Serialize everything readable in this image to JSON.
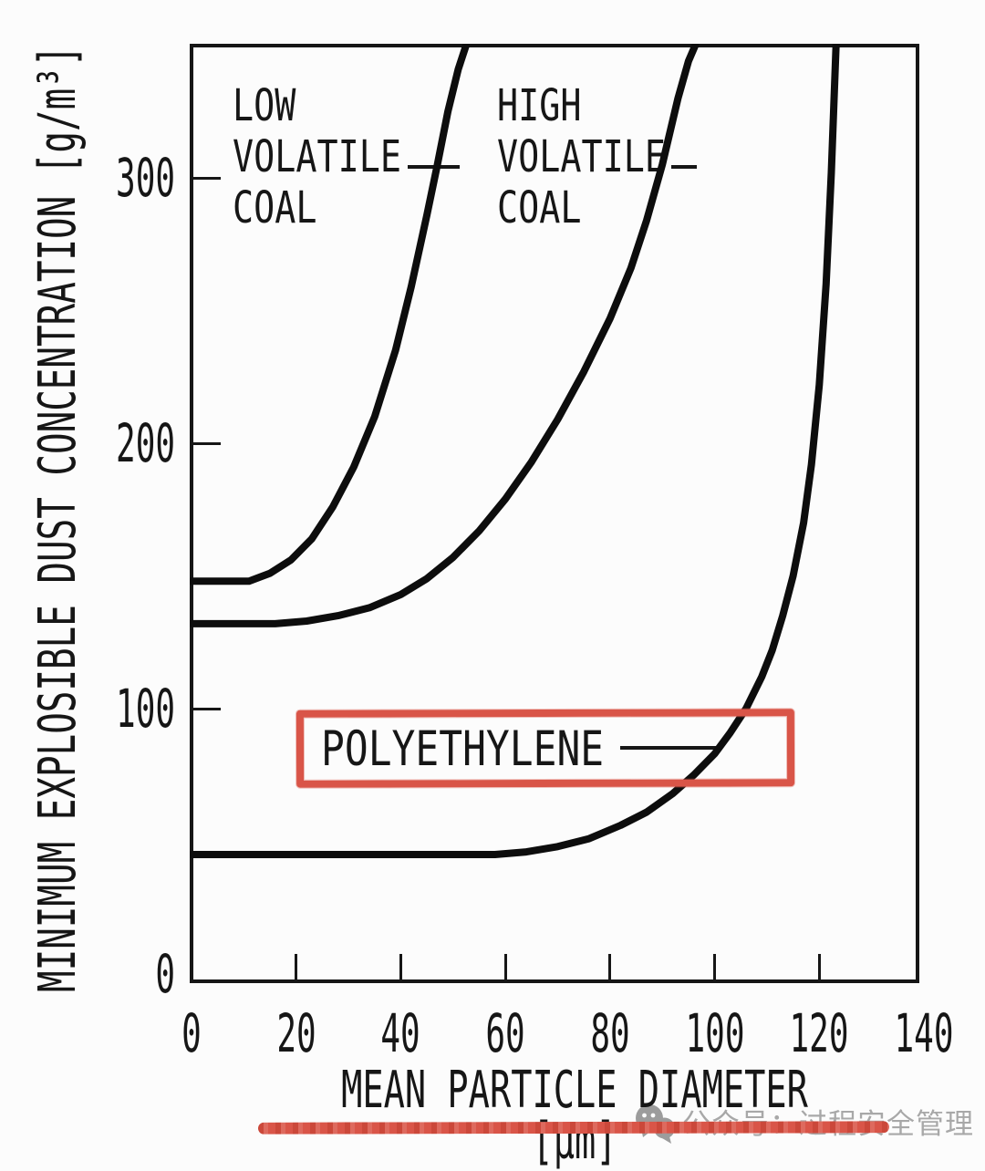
{
  "figure": {
    "background": "#fcfcfc",
    "ink_color": "#161616",
    "highlight_color": "#d95548",
    "watermark_color": "#a8a8a8"
  },
  "chart_data": {
    "type": "line",
    "title": "",
    "xlabel": "MEAN PARTICLE DIAMETER [μm]",
    "ylabel": "MINIMUM EXPLOSIBLE DUST CONCENTRATION [g/m³]",
    "xlim": [
      0,
      140
    ],
    "ylim": [
      0,
      350
    ],
    "x_ticks": [
      0,
      20,
      40,
      60,
      80,
      100,
      120,
      140
    ],
    "y_ticks": [
      0,
      100,
      200,
      300
    ],
    "grid": false,
    "legend_position": "inline-labels",
    "line_color": "#0d0d0d",
    "series": [
      {
        "id": "low-volatile-coal",
        "name": "LOW VOLATILE COAL",
        "label": "LOW\nVOLATILE\nCOAL",
        "highlighted": false,
        "points": [
          [
            0,
            148
          ],
          [
            6,
            148
          ],
          [
            11,
            148
          ],
          [
            15,
            151
          ],
          [
            19,
            156
          ],
          [
            23,
            164
          ],
          [
            27,
            176
          ],
          [
            31,
            191
          ],
          [
            35,
            210
          ],
          [
            39,
            235
          ],
          [
            42,
            259
          ],
          [
            45,
            286
          ],
          [
            47,
            305
          ],
          [
            49,
            325
          ],
          [
            51,
            341
          ],
          [
            52.5,
            350
          ]
        ]
      },
      {
        "id": "high-volatile-coal",
        "name": "HIGH VOLATILE COAL",
        "label": "HIGH\nVOLATILE\nCOAL",
        "highlighted": false,
        "points": [
          [
            0,
            132
          ],
          [
            8,
            132
          ],
          [
            16,
            132
          ],
          [
            22,
            133
          ],
          [
            28,
            135
          ],
          [
            34,
            138
          ],
          [
            40,
            143
          ],
          [
            45,
            149
          ],
          [
            50,
            157
          ],
          [
            55,
            167
          ],
          [
            60,
            179
          ],
          [
            65,
            193
          ],
          [
            70,
            209
          ],
          [
            75,
            227
          ],
          [
            80,
            247
          ],
          [
            84,
            266
          ],
          [
            87,
            284
          ],
          [
            90,
            305
          ],
          [
            93,
            330
          ],
          [
            95,
            344
          ],
          [
            96.3,
            350
          ]
        ]
      },
      {
        "id": "polyethylene",
        "name": "POLYETHYLENE",
        "label": "POLYETHYLENE",
        "highlighted": true,
        "points": [
          [
            0,
            45
          ],
          [
            10,
            45
          ],
          [
            20,
            45
          ],
          [
            30,
            45
          ],
          [
            40,
            45
          ],
          [
            50,
            45
          ],
          [
            58,
            45
          ],
          [
            64,
            46
          ],
          [
            70,
            48
          ],
          [
            76,
            51
          ],
          [
            82,
            56
          ],
          [
            87,
            61
          ],
          [
            92,
            68
          ],
          [
            96,
            75
          ],
          [
            100,
            83
          ],
          [
            103,
            91
          ],
          [
            106,
            100
          ],
          [
            109,
            112
          ],
          [
            111,
            122
          ],
          [
            113,
            135
          ],
          [
            115,
            150
          ],
          [
            117,
            170
          ],
          [
            118.5,
            192
          ],
          [
            120,
            222
          ],
          [
            121.3,
            260
          ],
          [
            122.3,
            302
          ],
          [
            123.2,
            350
          ]
        ]
      }
    ]
  },
  "watermark": {
    "icon": "wechat-icon",
    "text": "公众号：过程安全管理"
  }
}
